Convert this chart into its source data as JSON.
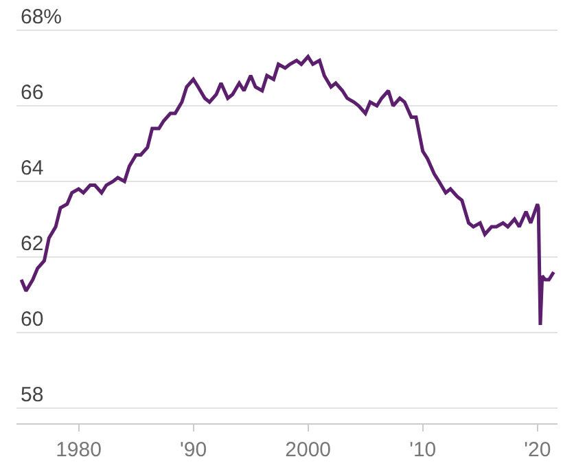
{
  "chart_data": {
    "type": "line",
    "x": [
      "1975-01",
      "1975-06",
      "1976-01",
      "1976-06",
      "1977-01",
      "1977-06",
      "1978-01",
      "1978-06",
      "1979-01",
      "1979-06",
      "1980-01",
      "1980-06",
      "1981-01",
      "1981-06",
      "1982-01",
      "1982-06",
      "1983-01",
      "1983-06",
      "1984-01",
      "1984-06",
      "1985-01",
      "1985-06",
      "1986-01",
      "1986-06",
      "1987-01",
      "1987-06",
      "1988-01",
      "1988-06",
      "1989-01",
      "1989-06",
      "1990-01",
      "1990-06",
      "1991-01",
      "1991-06",
      "1992-01",
      "1992-06",
      "1993-01",
      "1993-06",
      "1994-01",
      "1994-06",
      "1995-01",
      "1995-06",
      "1996-01",
      "1996-06",
      "1997-01",
      "1997-06",
      "1998-01",
      "1998-06",
      "1999-01",
      "1999-06",
      "2000-01",
      "2000-06",
      "2001-01",
      "2001-06",
      "2002-01",
      "2002-06",
      "2003-01",
      "2003-06",
      "2004-01",
      "2004-06",
      "2005-01",
      "2005-06",
      "2006-01",
      "2006-06",
      "2007-01",
      "2007-06",
      "2008-01",
      "2008-06",
      "2009-01",
      "2009-06",
      "2010-01",
      "2010-06",
      "2011-01",
      "2011-06",
      "2012-01",
      "2012-06",
      "2013-01",
      "2013-06",
      "2014-01",
      "2014-06",
      "2015-01",
      "2015-06",
      "2016-01",
      "2016-06",
      "2017-01",
      "2017-06",
      "2018-01",
      "2018-06",
      "2019-01",
      "2019-06",
      "2020-01",
      "2020-02",
      "2020-04",
      "2020-06",
      "2020-09",
      "2021-01",
      "2021-06"
    ],
    "series": [
      {
        "color": "#5c1f6e",
        "values": [
          61.4,
          61.1,
          61.4,
          61.7,
          61.9,
          62.5,
          62.8,
          63.3,
          63.4,
          63.7,
          63.8,
          63.7,
          63.9,
          63.9,
          63.7,
          63.9,
          64.0,
          64.1,
          64.0,
          64.4,
          64.7,
          64.7,
          64.9,
          65.4,
          65.4,
          65.6,
          65.8,
          65.8,
          66.1,
          66.5,
          66.7,
          66.5,
          66.2,
          66.1,
          66.3,
          66.6,
          66.2,
          66.3,
          66.6,
          66.4,
          66.8,
          66.5,
          66.4,
          66.8,
          66.7,
          67.1,
          67.0,
          67.1,
          67.2,
          67.1,
          67.3,
          67.1,
          67.2,
          66.8,
          66.5,
          66.6,
          66.4,
          66.2,
          66.1,
          66.0,
          65.8,
          66.1,
          66.0,
          66.2,
          66.4,
          66.0,
          66.2,
          66.1,
          65.7,
          65.7,
          64.8,
          64.6,
          64.2,
          64.0,
          63.7,
          63.8,
          63.6,
          63.5,
          62.9,
          62.8,
          62.9,
          62.6,
          62.8,
          62.8,
          62.9,
          62.8,
          63.0,
          62.8,
          63.2,
          62.9,
          63.4,
          63.3,
          60.2,
          61.5,
          61.4,
          61.4,
          61.6
        ]
      }
    ],
    "xlim": [
      "1974-08",
      "2021-10"
    ],
    "xticks": [
      {
        "value": "1980-01-01",
        "label": "1980"
      },
      {
        "value": "1990-01-01",
        "label": "'90"
      },
      {
        "value": "2000-01-01",
        "label": "2000"
      },
      {
        "value": "2010-01-01",
        "label": "'10"
      },
      {
        "value": "2020-01-01",
        "label": "'20"
      }
    ],
    "ylim": [
      57.6,
      68.8
    ],
    "yticks": [
      58,
      60,
      62,
      64,
      66,
      {
        "value": 68,
        "label": "68%"
      }
    ],
    "grid": "y",
    "marker": "none",
    "line_style": "solid"
  }
}
